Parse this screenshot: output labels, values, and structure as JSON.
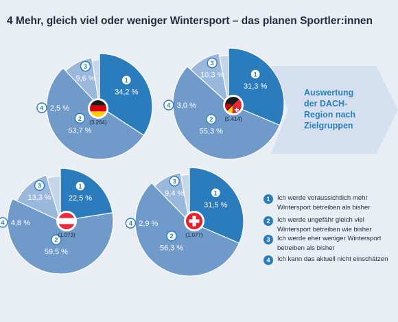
{
  "title": "4 Mehr, gleich viel oder weniger Wintersport – das planen Sportler:innen",
  "arrow_label_lines": [
    "Auswertung",
    "der DACH-",
    "Region nach",
    "Zielgruppen"
  ],
  "legend": [
    {
      "num": "1",
      "text": "Ich werde voraussichtlich mehr Wintersport betreiben als bisher"
    },
    {
      "num": "2",
      "text": "Ich werde ungefähr gleich viel Wintersport betreiben wie bisher"
    },
    {
      "num": "3",
      "text": "Ich werde eher weniger Wintersport betreiben als bisher"
    },
    {
      "num": "4",
      "text": "Ich kann das aktuell nicht einschätzen"
    }
  ],
  "colors": {
    "slice_1": "#2a7cbc",
    "slice_2": "#6f9ac9",
    "slice_3": "#9ab8dc",
    "slice_4": "#c3d6ec",
    "arrow": "#d4e0ef",
    "accent_text": "#2e7fbd",
    "background": "#e9eef5"
  },
  "chart_data": [
    {
      "type": "pie",
      "region": "Deutschland",
      "flag": "de",
      "sample": "(3.264)",
      "series": [
        {
          "num": "1",
          "value": 34.2,
          "label": "34,2 %"
        },
        {
          "num": "2",
          "value": 53.7,
          "label": "53,7 %"
        },
        {
          "num": "3",
          "value": 9.6,
          "label": "9,6 %"
        },
        {
          "num": "4",
          "value": 2.5,
          "label": "2,5 %"
        }
      ]
    },
    {
      "type": "pie",
      "region": "DACH",
      "flag": "dach",
      "sample": "(5.414)",
      "series": [
        {
          "num": "1",
          "value": 31.3,
          "label": "31,3 %"
        },
        {
          "num": "2",
          "value": 55.3,
          "label": "55,3 %"
        },
        {
          "num": "3",
          "value": 10.3,
          "label": "10,3 %"
        },
        {
          "num": "4",
          "value": 3.0,
          "label": "3,0 %"
        }
      ]
    },
    {
      "type": "pie",
      "region": "Österreich",
      "flag": "at",
      "sample": "(1.073)",
      "series": [
        {
          "num": "1",
          "value": 22.5,
          "label": "22,5 %"
        },
        {
          "num": "2",
          "value": 59.5,
          "label": "59,5 %"
        },
        {
          "num": "3",
          "value": 13.3,
          "label": "13,3 %"
        },
        {
          "num": "4",
          "value": 4.8,
          "label": "4,8 %"
        }
      ]
    },
    {
      "type": "pie",
      "region": "Schweiz",
      "flag": "ch",
      "sample": "(1.077)",
      "series": [
        {
          "num": "1",
          "value": 31.5,
          "label": "31,5 %"
        },
        {
          "num": "2",
          "value": 56.3,
          "label": "56,3 %"
        },
        {
          "num": "3",
          "value": 9.4,
          "label": "9,4 %"
        },
        {
          "num": "4",
          "value": 2.9,
          "label": "2,9 %"
        }
      ]
    }
  ]
}
